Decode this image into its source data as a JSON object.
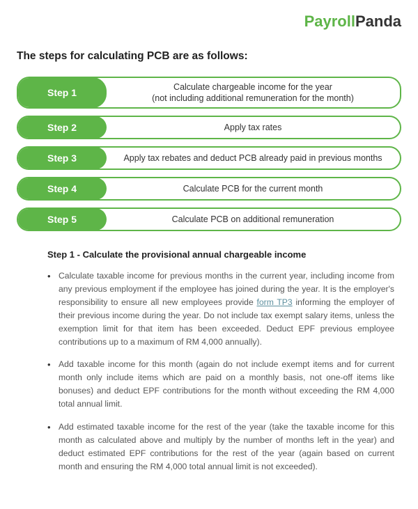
{
  "brand": {
    "part1": "Payroll",
    "part2": "Panda",
    "color_accent": "#5eb548",
    "color_dark": "#333333"
  },
  "section_title": "The steps for calculating PCB are as follows:",
  "steps": [
    {
      "label": "Step 1",
      "line1": "Calculate chargeable income for the year",
      "line2": "(not including additional remuneration for the month)"
    },
    {
      "label": "Step 2",
      "line1": "Apply tax rates",
      "line2": ""
    },
    {
      "label": "Step 3",
      "line1": "Apply tax rebates and deduct PCB already paid in previous months",
      "line2": ""
    },
    {
      "label": "Step 4",
      "line1": "Calculate PCB for the current month",
      "line2": ""
    },
    {
      "label": "Step 5",
      "line1": "Calculate PCB on additional remuneration",
      "line2": ""
    }
  ],
  "detail_title": "Step 1 - Calculate the provisional annual chargeable income",
  "bullets": {
    "b1_pre": "Calculate taxable income for previous months in the current year, including income from any previous employment if the employee has joined during the year. It is the employer's responsibility to ensure all new employees provide ",
    "b1_link": "form TP3",
    "b1_post": " informing the employer of their previous income during the year. Do not include tax exempt salary items, unless the exemption limit for that item has been exceeded. Deduct EPF previous employee contributions up to a maximum of RM 4,000 annually).",
    "b2": "Add taxable income for this month (again do not include exempt items and for current month only include items which are paid on a monthly basis, not one-off items like bonuses) and deduct EPF contributions for the month without exceeding the RM 4,000 total annual limit.",
    "b3": "Add estimated taxable income for the rest of the year (take the taxable income for this month as calculated above and multiply by the number of months left in the year) and deduct estimated EPF contributions for the rest of the year (again based on current month and ensuring the RM 4,000 total annual limit is not exceeded)."
  },
  "colors": {
    "step_border": "#5eb548",
    "step_bg": "#5eb548",
    "step_text": "#ffffff",
    "body_text": "#555555",
    "link": "#5c8f9e",
    "background": "#ffffff"
  }
}
